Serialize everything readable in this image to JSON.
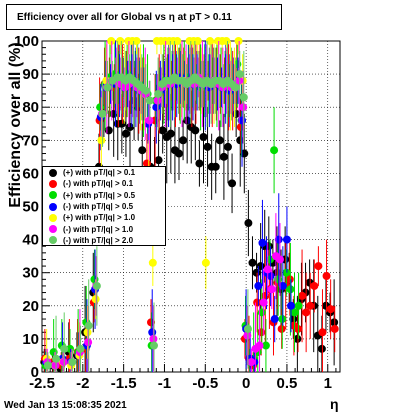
{
  "header": {
    "title": "Efficiency over all for Global vs   η at pT > 0.11"
  },
  "footer": {
    "datestamp": "Wed Jan 13 15:08:35 2021"
  },
  "chart_data": {
    "type": "scatter",
    "title": "Efficiency over all for Global vs   η at pT > 0.11",
    "xlabel": "η",
    "ylabel": "Efficiency over all (%)",
    "xlim": [
      -2.5,
      1.15
    ],
    "ylim": [
      0,
      100
    ],
    "grid": true,
    "legend_position": "left-middle",
    "xticks": [
      -2.5,
      -2,
      -1.5,
      -1,
      -0.5,
      0,
      0.5,
      1
    ],
    "xtick_labels": [
      "-2.5",
      "-2",
      "-1.5",
      "-1",
      "-0.5",
      "0",
      "0.5",
      "1"
    ],
    "yticks": [
      0,
      10,
      20,
      30,
      40,
      50,
      60,
      70,
      80,
      90,
      100
    ],
    "ytick_labels": [
      "0",
      "10",
      "20",
      "30",
      "40",
      "50",
      "60",
      "70",
      "80",
      "90",
      "100"
    ],
    "series": [
      {
        "name": "(+) with pT/|q| > 0.1",
        "color": "#000000",
        "x": [
          -2.45,
          -2.35,
          -2.25,
          -2.15,
          -2.05,
          -1.95,
          -1.85,
          -1.78,
          -1.72,
          -1.66,
          -1.6,
          -1.55,
          -1.5,
          -1.45,
          -1.4,
          -1.35,
          -1.3,
          -1.25,
          -1.2,
          -1.15,
          -1.1,
          -1.05,
          -1.0,
          -0.95,
          -0.9,
          -0.85,
          -0.8,
          -0.75,
          -0.7,
          -0.65,
          -0.6,
          -0.55,
          -0.5,
          -0.45,
          -0.4,
          -0.35,
          -0.3,
          -0.25,
          -0.2,
          -0.15,
          -0.1,
          -0.05,
          0.0,
          0.05,
          0.1,
          0.15,
          0.2,
          0.25,
          0.3,
          0.35,
          0.4,
          0.45,
          0.5,
          0.55,
          0.6,
          0.65,
          0.7,
          0.75,
          0.8,
          0.85,
          0.9,
          0.95,
          1.0,
          1.05,
          1.1
        ],
        "y": [
          3,
          2,
          1,
          6,
          5,
          12,
          24,
          62,
          79,
          73,
          78,
          75,
          75,
          72,
          74,
          82,
          80,
          67,
          57,
          62,
          60,
          64,
          73,
          71,
          72,
          67,
          66,
          70,
          76,
          74,
          73,
          63,
          71,
          68,
          62,
          62,
          70,
          65,
          68,
          57,
          78,
          70,
          66,
          45,
          33,
          30,
          32,
          38,
          38,
          33,
          30,
          25,
          34,
          28,
          16,
          10,
          22,
          24,
          27,
          20,
          11,
          7,
          20,
          18,
          15
        ]
      },
      {
        "name": "(-) with pT/|q| > 0.1",
        "color": "#ff0000",
        "x": [
          -2.45,
          -2.35,
          -2.25,
          -2.15,
          -2.05,
          -1.95,
          -1.85,
          -1.78,
          -1.72,
          -1.66,
          -1.6,
          -1.55,
          -1.5,
          -1.45,
          -1.4,
          -1.35,
          -1.3,
          -1.25,
          -1.2,
          -1.15,
          -1.1,
          -1.05,
          -1.0,
          -0.95,
          -0.9,
          -0.85,
          -0.8,
          -0.75,
          -0.7,
          -0.65,
          -0.6,
          -0.55,
          -0.5,
          -0.45,
          -0.4,
          -0.35,
          -0.3,
          -0.25,
          -0.2,
          -0.15,
          -0.1,
          -0.05,
          0.0,
          0.05,
          0.1,
          0.15,
          0.2,
          0.25,
          0.3,
          0.35,
          0.4,
          0.45,
          0.5,
          0.55,
          0.6,
          0.65,
          0.7,
          0.75,
          0.8,
          0.85,
          0.9,
          0.95,
          1.0,
          1.05,
          1.1
        ],
        "y": [
          4,
          3,
          2,
          4,
          6,
          7,
          21,
          76,
          87,
          86,
          86,
          88,
          87,
          87,
          86,
          86,
          85,
          84,
          63,
          15,
          76,
          84,
          86,
          88,
          88,
          87,
          87,
          89,
          88,
          88,
          87,
          89,
          88,
          88,
          87,
          87,
          87,
          88,
          87,
          85,
          89,
          74,
          10,
          4,
          2,
          21,
          12,
          23,
          25,
          15,
          27,
          13,
          26,
          28,
          14,
          13,
          23,
          18,
          20,
          26,
          32,
          12,
          29,
          19,
          13
        ]
      },
      {
        "name": "(+) with pT/|q| > 0.5",
        "color": "#00dd00",
        "x": [
          -2.45,
          -2.35,
          -2.25,
          -2.15,
          -2.05,
          -1.95,
          -1.85,
          -1.78,
          -1.72,
          -1.66,
          -1.6,
          -1.55,
          -1.5,
          -1.45,
          -1.4,
          -1.35,
          -1.3,
          -1.25,
          -1.2,
          -1.15,
          -1.1,
          -1.05,
          -1.0,
          -0.95,
          -0.9,
          -0.85,
          -0.8,
          -0.75,
          -0.7,
          -0.65,
          -0.6,
          -0.55,
          -0.5,
          -0.45,
          -0.4,
          -0.35,
          -0.3,
          -0.25,
          -0.2,
          -0.15,
          -0.1,
          -0.05,
          0.0,
          0.05,
          0.1,
          0.15,
          0.2,
          0.25,
          0.3,
          0.35,
          0.4,
          0.45,
          0.5,
          0.55,
          0.6,
          0.65
        ],
        "y": [
          2,
          6,
          8,
          7,
          6,
          15,
          28,
          80,
          87,
          89,
          90,
          89,
          89,
          90,
          89,
          88,
          87,
          85,
          84,
          8,
          82,
          86,
          88,
          87,
          88,
          89,
          89,
          88,
          89,
          88,
          87,
          86,
          88,
          87,
          88,
          88,
          86,
          87,
          85,
          87,
          93,
          76,
          14,
          3,
          4,
          6,
          18,
          8,
          34,
          67,
          28,
          16,
          30,
          25,
          18,
          20
        ]
      },
      {
        "name": "(-) with pT/|q| > 0.5",
        "color": "#0000ff",
        "x": [
          -2.45,
          -2.35,
          -2.25,
          -2.15,
          -2.05,
          -1.95,
          -1.85,
          -1.78,
          -1.72,
          -1.66,
          -1.6,
          -1.55,
          -1.5,
          -1.45,
          -1.4,
          -1.35,
          -1.3,
          -1.25,
          -1.2,
          -1.15,
          -1.1,
          -1.05,
          -1.0,
          -0.95,
          -0.9,
          -0.85,
          -0.8,
          -0.75,
          -0.7,
          -0.65,
          -0.6,
          -0.55,
          -0.5,
          -0.45,
          -0.4,
          -0.35,
          -0.3,
          -0.25,
          -0.2,
          -0.15,
          -0.1,
          -0.05,
          0.0,
          0.05,
          0.1,
          0.15,
          0.2,
          0.25,
          0.3,
          0.35,
          0.4,
          0.45,
          0.5,
          0.55
        ],
        "y": [
          3,
          2,
          4,
          3,
          5,
          8,
          25,
          77,
          86,
          87,
          87,
          88,
          86,
          87,
          88,
          86,
          85,
          84,
          75,
          12,
          80,
          85,
          87,
          88,
          88,
          87,
          89,
          88,
          88,
          87,
          88,
          87,
          87,
          86,
          88,
          87,
          86,
          88,
          85,
          86,
          88,
          76,
          13,
          4,
          3,
          26,
          39,
          30,
          29,
          16,
          40,
          26,
          40,
          20
        ]
      },
      {
        "name": "(+) with pT/|q| > 1.0",
        "color": "#ffff00",
        "x": [
          -2.45,
          -2.35,
          -2.25,
          -2.15,
          -2.05,
          -1.95,
          -1.85,
          -1.78,
          -1.72,
          -1.66,
          -1.6,
          -1.55,
          -1.5,
          -1.45,
          -1.4,
          -1.35,
          -1.3,
          -1.25,
          -1.2,
          -1.15,
          -1.1,
          -1.05,
          -1.0,
          -0.95,
          -0.9,
          -0.85,
          -0.8,
          -0.75,
          -0.7,
          -0.65,
          -0.6,
          -0.55,
          -0.5,
          -0.45,
          -0.4,
          -0.35,
          -0.3,
          -0.25,
          -0.2,
          -0.15,
          -0.1,
          -0.05
        ],
        "y": [
          4,
          2,
          3,
          2,
          5,
          12,
          22,
          70,
          88,
          100,
          88,
          100,
          87,
          100,
          100,
          100,
          86,
          84,
          61,
          33,
          100,
          100,
          100,
          100,
          100,
          100,
          88,
          88,
          100,
          100,
          100,
          88,
          33,
          100,
          88,
          100,
          100,
          100,
          87,
          86,
          100,
          88
        ]
      },
      {
        "name": "(-) with pT/|q| > 1.0",
        "color": "#ff00ff",
        "x": [
          -2.45,
          -2.35,
          -2.25,
          -2.15,
          -2.05,
          -1.95,
          -1.85,
          -1.78,
          -1.72,
          -1.66,
          -1.6,
          -1.55,
          -1.5,
          -1.45,
          -1.4,
          -1.35,
          -1.3,
          -1.25,
          -1.2,
          -1.15,
          -1.1,
          -1.05,
          -1.0,
          -0.95,
          -0.9,
          -0.85,
          -0.8,
          -0.75,
          -0.7,
          -0.65,
          -0.6,
          -0.55,
          -0.5,
          -0.45,
          -0.4,
          -0.35,
          -0.3,
          -0.25,
          -0.2,
          -0.15,
          -0.1,
          -0.05,
          0.0,
          0.05,
          0.1,
          0.15,
          0.2,
          0.25,
          0.3,
          0.35,
          0.4
        ],
        "y": [
          3,
          2,
          3,
          3,
          6,
          9,
          26,
          78,
          86,
          88,
          88,
          87,
          86,
          87,
          88,
          86,
          85,
          84,
          76,
          10,
          82,
          86,
          87,
          87,
          88,
          88,
          88,
          87,
          88,
          87,
          89,
          87,
          88,
          87,
          88,
          87,
          86,
          88,
          86,
          87,
          88,
          80,
          11,
          3,
          7,
          8,
          21,
          31,
          25,
          35,
          34
        ]
      },
      {
        "name": "(-) with pT/|q| > 2.0",
        "color": "#66cc66",
        "x": [
          -2.45,
          -2.35,
          -2.25,
          -2.15,
          -2.05,
          -1.95,
          -1.85,
          -1.78,
          -1.72,
          -1.66,
          -1.6,
          -1.55,
          -1.5,
          -1.45,
          -1.4,
          -1.35,
          -1.3,
          -1.25,
          -1.2,
          -1.15,
          -1.1,
          -1.05,
          -1.0,
          -0.95,
          -0.9,
          -0.85,
          -0.8,
          -0.75,
          -0.7,
          -0.65,
          -0.6,
          -0.55,
          -0.5,
          -0.45,
          -0.4,
          -0.35,
          -0.3,
          -0.25,
          -0.2,
          -0.15,
          -0.1,
          -0.05,
          0.0
        ],
        "y": [
          2,
          4,
          7,
          3,
          7,
          14,
          26,
          78,
          86,
          88,
          89,
          89,
          88,
          89,
          88,
          87,
          86,
          85,
          82,
          8,
          84,
          87,
          88,
          88,
          89,
          88,
          88,
          87,
          88,
          89,
          88,
          87,
          88,
          87,
          88,
          88,
          87,
          88,
          87,
          86,
          90,
          83,
          13
        ]
      }
    ]
  }
}
